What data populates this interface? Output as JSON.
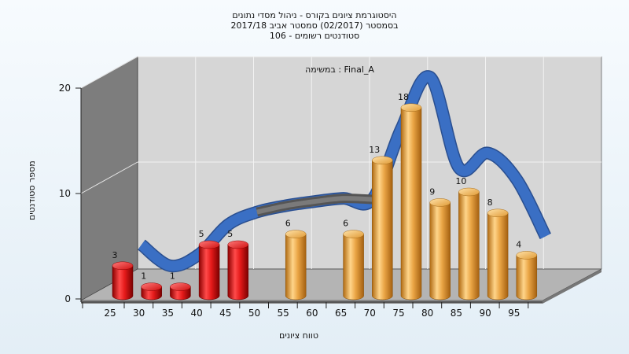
{
  "title": {
    "line1": "היסטוגרמת ציונים בקורס - ניהול מסדי נתונים",
    "line2": "בסמסטר  (02/2017)  סמסטר אביב 2017/18",
    "line3": "סטודנטים רשומים - 106"
  },
  "chart_data": {
    "type": "bar",
    "annotation": "במשימה : Final_A",
    "xlabel": "טווח ציונים",
    "ylabel": "מספר סטודנטים",
    "ylim": [
      0,
      20
    ],
    "yticks": [
      0,
      10,
      20
    ],
    "categories": [
      "25",
      "30",
      "35",
      "40",
      "45",
      "50",
      "55",
      "60",
      "65",
      "70",
      "75",
      "80",
      "85",
      "90",
      "95"
    ],
    "values": [
      3,
      1,
      1,
      5,
      5,
      0,
      6,
      0,
      6,
      13,
      18,
      9,
      10,
      8,
      4
    ],
    "trend_values": [
      3.5,
      1.5,
      2.6,
      5.4,
      6.6,
      7.2,
      7.6,
      7.9,
      7.8,
      14.5,
      19.4,
      10.8,
      12.2,
      9.7,
      4.3
    ],
    "grid": true,
    "colors": {
      "fail": "#e01818",
      "pass": "#e8a63a",
      "trend": "#3a6fc4",
      "trend_shadow": "#5a5a5a"
    }
  }
}
